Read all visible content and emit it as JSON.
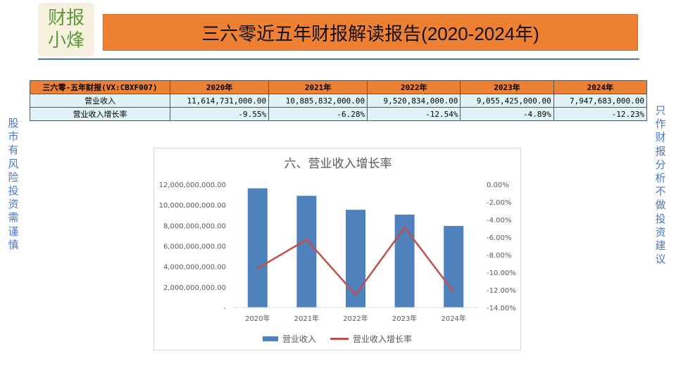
{
  "logo": {
    "line1": "财报",
    "line2": "小烽"
  },
  "header": {
    "title": "三六零近五年财报解读报告(2020-2024年)"
  },
  "side_left": "股市有风险 投资需谨慎",
  "side_right": "只作财报分析 不做投资建议",
  "table": {
    "corner": "三六零-五年财报(VX:CBXF007)",
    "years": [
      "2020年",
      "2021年",
      "2022年",
      "2023年",
      "2024年"
    ],
    "rows": [
      {
        "label": "营业收入",
        "values": [
          "11,614,731,000.00",
          "10,885,832,000.00",
          "9,520,834,000.00",
          "9,055,425,000.00",
          "7,947,683,000.00"
        ]
      },
      {
        "label": "营业收入增长率",
        "values": [
          "-9.55%",
          "-6.28%",
          "-12.54%",
          "-4.89%",
          "-12.23%"
        ]
      }
    ]
  },
  "colors": {
    "bar": "#4f81bd",
    "line": "#c0504d",
    "title_bg": "#ee8034",
    "table_bg": "#dff3f8"
  },
  "chart_data": {
    "type": "bar",
    "title": "六、营业收入增长率",
    "categories": [
      "2020年",
      "2021年",
      "2022年",
      "2023年",
      "2024年"
    ],
    "series": [
      {
        "name": "营业收入",
        "type": "bar",
        "axis": "left",
        "values": [
          11614731000,
          10885832000,
          9520834000,
          9055425000,
          7947683000
        ]
      },
      {
        "name": "营业收入增长率",
        "type": "line",
        "axis": "right",
        "values": [
          -9.55,
          -6.28,
          -12.54,
          -4.89,
          -12.23
        ]
      }
    ],
    "ylim": [
      0,
      12000000000
    ],
    "y_ticks": [
      "12,000,000,000.00",
      "10,000,000,000.00",
      "8,000,000,000.00",
      "6,000,000,000.00",
      "4,000,000,000.00",
      "2,000,000,000.00",
      "-"
    ],
    "y2lim": [
      -14,
      0
    ],
    "y2_ticks": [
      "0.00%",
      "-2.00%",
      "-4.00%",
      "-6.00%",
      "-8.00%",
      "-10.00%",
      "-12.00%",
      "-14.00%"
    ],
    "grid": false,
    "legend": "bottom"
  }
}
